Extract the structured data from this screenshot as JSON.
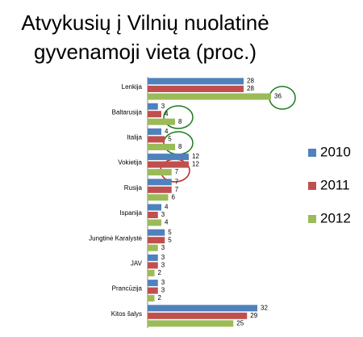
{
  "chart_data": {
    "type": "hbar",
    "title": [
      "Atvykusių į Vilnių nuolatinė",
      "gyvenamoji vieta (proc.)"
    ],
    "categories": [
      "Lenkija",
      "Baltarusija",
      "Italija",
      "Vokietija",
      "Rusija",
      "Ispanija",
      "Jungtinė Karalystė",
      "JAV",
      "Prancūzija",
      "Kitos šalys"
    ],
    "series": [
      {
        "name": "2010",
        "color": "#4f81bd",
        "values": [
          28,
          3,
          4,
          12,
          7,
          4,
          5,
          3,
          3,
          32
        ]
      },
      {
        "name": "2011",
        "color": "#c0504d",
        "values": [
          28,
          4,
          5,
          12,
          7,
          3,
          5,
          3,
          3,
          29
        ]
      },
      {
        "name": "2012",
        "color": "#9bbb59",
        "values": [
          36,
          8,
          8,
          7,
          6,
          4,
          3,
          2,
          2,
          25
        ]
      }
    ],
    "legend": "right"
  }
}
